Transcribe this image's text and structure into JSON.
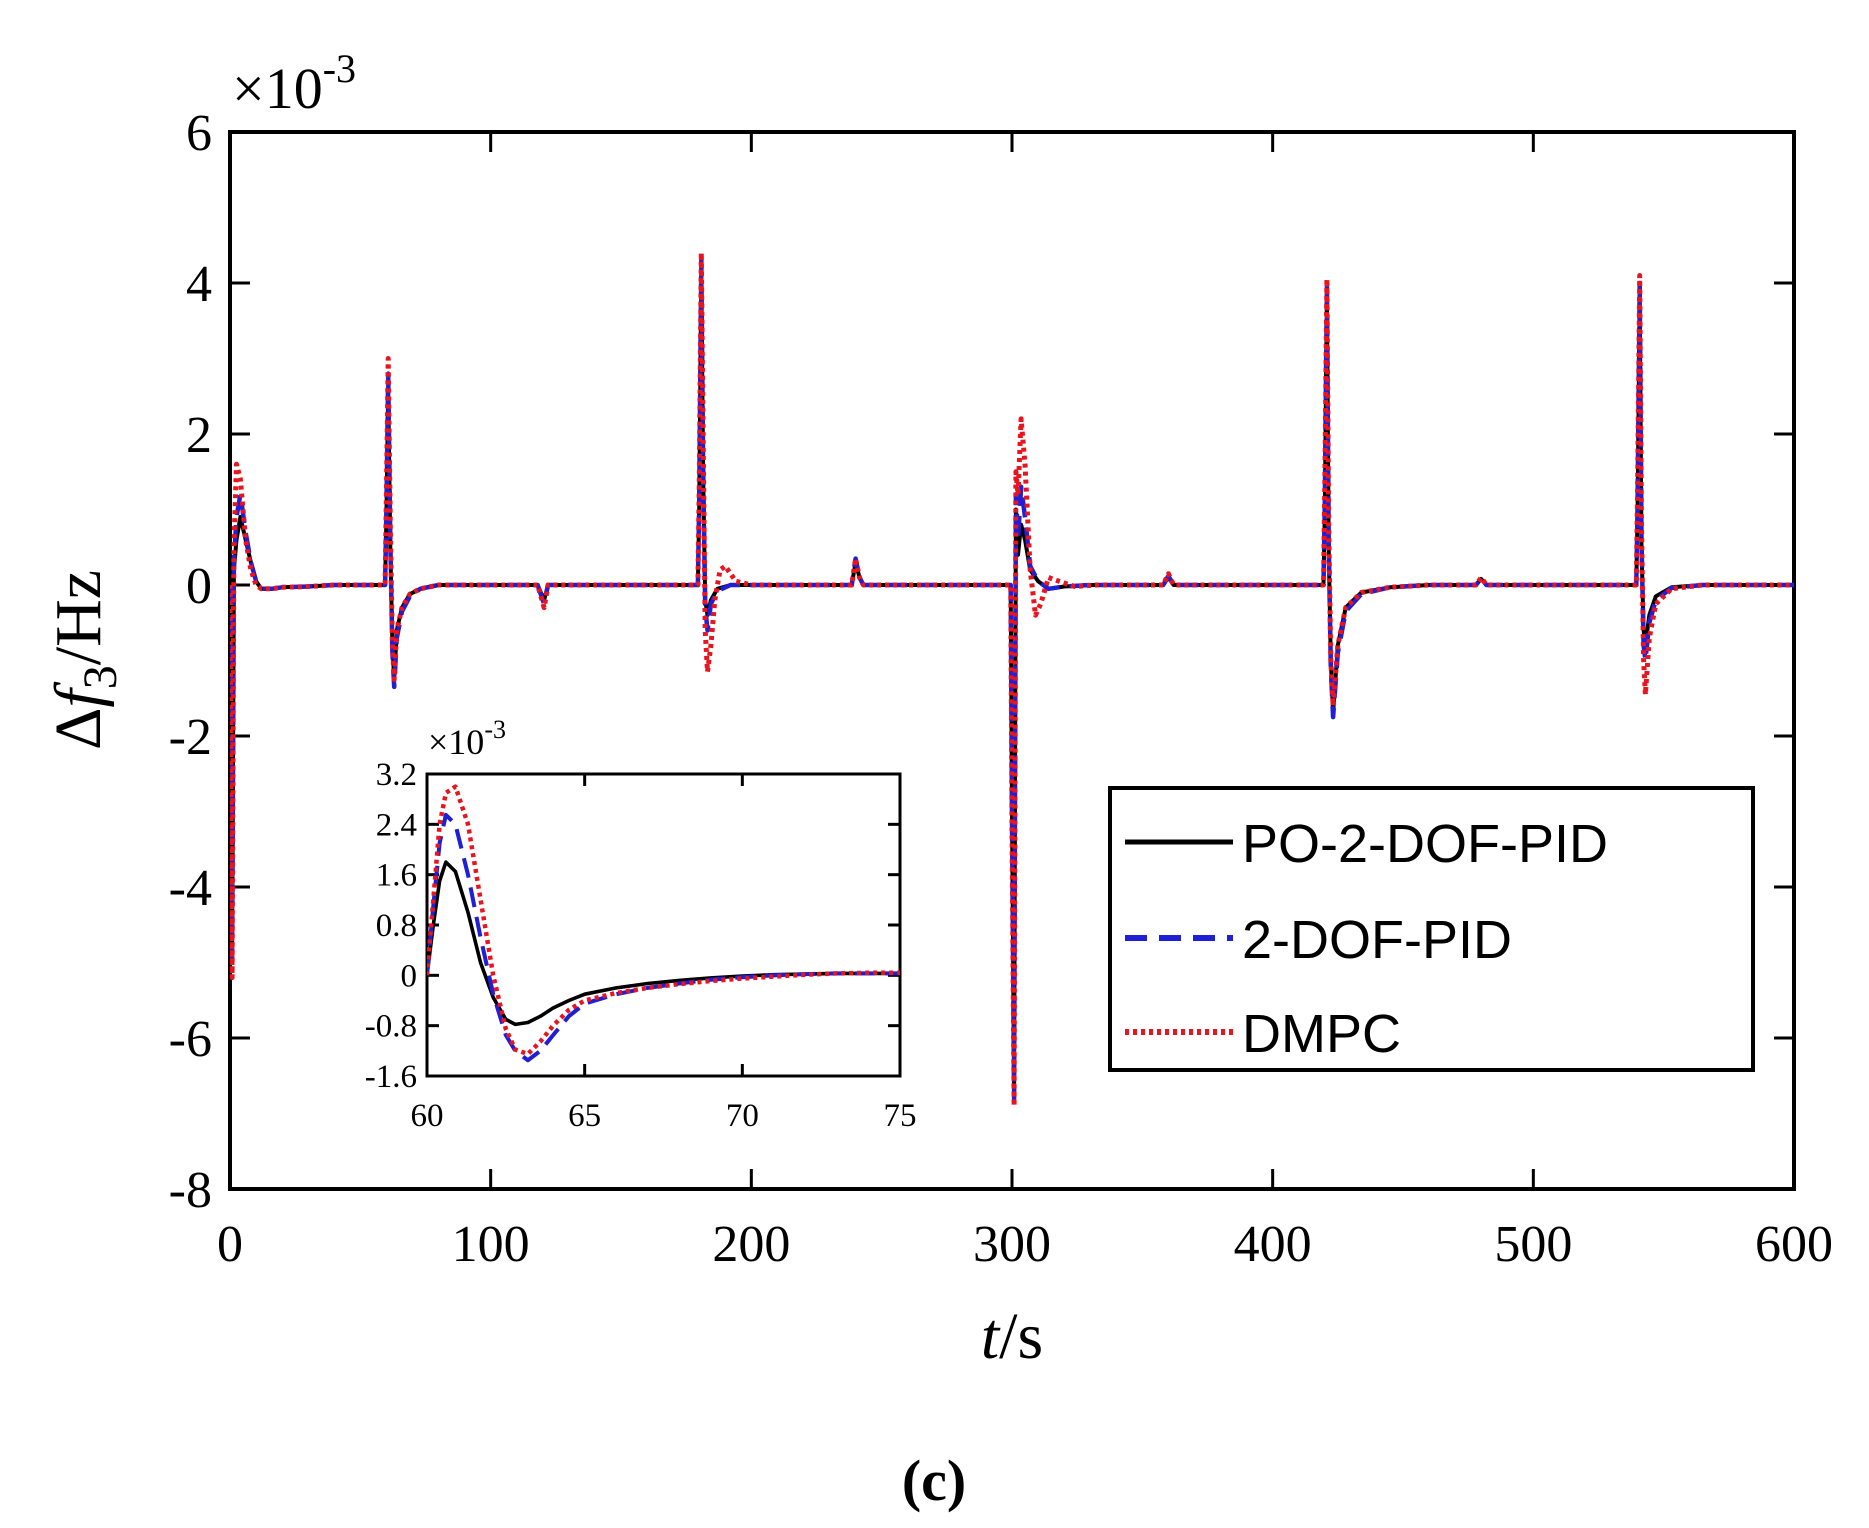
{
  "chart_data": {
    "type": "line",
    "title": "",
    "caption": "(c)",
    "xlabel_var": "t",
    "xlabel_unit": "/s",
    "ylabel_prefix": "Δ",
    "ylabel_var": "f",
    "ylabel_sub": "3",
    "ylabel_unit": "/Hz",
    "exponent_base": "×10",
    "exponent_power": "-3",
    "xlim": [
      0,
      600
    ],
    "ylim": [
      -8,
      6
    ],
    "xticks": [
      "0",
      "100",
      "200",
      "300",
      "400",
      "500",
      "600"
    ],
    "yticks": [
      "6",
      "4",
      "2",
      "0",
      "-2",
      "-4",
      "-6",
      "-8"
    ],
    "legend": {
      "location": "lower-right",
      "entries": [
        "PO-2-DOF-PID",
        "2-DOF-PID",
        "DMPC"
      ]
    },
    "series": [
      {
        "name": "PO-2-DOF-PID",
        "color": "#000000",
        "style": "solid",
        "x": [
          0,
          0.8,
          1.5,
          2.5,
          4,
          6,
          8,
          10,
          12,
          16,
          20,
          30,
          40,
          59.5,
          60,
          60.7,
          61.5,
          62.3,
          63,
          64,
          66,
          69,
          73,
          80,
          100,
          118,
          120.5,
          122,
          125,
          130,
          179.5,
          180,
          180.8,
          181.5,
          182.3,
          183.2,
          184.5,
          187,
          192,
          200,
          238.5,
          240,
          241.5,
          243,
          250,
          299.5,
          300,
          300.8,
          301.5,
          302.3,
          303.5,
          305,
          307,
          310,
          314,
          320,
          330,
          340,
          358,
          360,
          362,
          365,
          370,
          419.5,
          420,
          420.8,
          421.5,
          422.3,
          423.2,
          425,
          428,
          434,
          445,
          460,
          478,
          480,
          482,
          490,
          539.5,
          540,
          540.8,
          541.5,
          542.3,
          543,
          544.5,
          547,
          553,
          565,
          580,
          600
        ],
        "y": [
          0,
          -5.0,
          0.2,
          0.6,
          0.9,
          0.6,
          0.3,
          0.05,
          -0.05,
          -0.05,
          -0.03,
          -0.02,
          0,
          0,
          0.9,
          2.6,
          0.5,
          -0.8,
          -1.25,
          -0.6,
          -0.3,
          -0.12,
          -0.05,
          0,
          0,
          0,
          -0.2,
          0,
          0,
          0,
          0,
          1.0,
          4.2,
          1.5,
          -0.2,
          -0.4,
          -0.2,
          -0.05,
          0,
          0,
          0,
          0.3,
          0.1,
          0,
          0,
          0,
          -3.0,
          -6.7,
          1.0,
          0.4,
          0.8,
          0.6,
          0.2,
          0.05,
          -0.05,
          -0.02,
          0,
          0,
          0,
          0.1,
          0,
          0,
          0,
          0,
          1.0,
          3.9,
          0.5,
          -1.0,
          -1.7,
          -0.8,
          -0.3,
          -0.1,
          -0.03,
          0,
          0,
          0.08,
          0,
          0,
          0,
          1.0,
          3.9,
          0.5,
          -0.6,
          -0.8,
          -0.4,
          -0.15,
          -0.03,
          0,
          0,
          0
        ]
      },
      {
        "name": "2-DOF-PID",
        "color": "#1f1fd6",
        "style": "dashed",
        "x": [
          0,
          0.8,
          1.5,
          2.5,
          4,
          6,
          8,
          10,
          12,
          16,
          20,
          30,
          40,
          59.5,
          60,
          60.7,
          61.5,
          62.3,
          63,
          64,
          66,
          69,
          73,
          80,
          100,
          118,
          120.5,
          122,
          125,
          130,
          179.5,
          180,
          180.8,
          181.5,
          182.3,
          183.2,
          184.5,
          187,
          192,
          200,
          238.5,
          240,
          241.5,
          243,
          250,
          299.5,
          300,
          300.8,
          301.5,
          302.3,
          303.5,
          305,
          307,
          310,
          314,
          320,
          330,
          340,
          358,
          360,
          362,
          365,
          370,
          419.5,
          420,
          420.8,
          421.5,
          422.3,
          423.2,
          425,
          428,
          434,
          445,
          460,
          478,
          480,
          482,
          490,
          539.5,
          540,
          540.8,
          541.5,
          542.3,
          543,
          544.5,
          547,
          553,
          565,
          580,
          600
        ],
        "y": [
          0,
          -5.1,
          0.3,
          0.9,
          1.2,
          0.7,
          0.3,
          0.05,
          -0.05,
          -0.05,
          -0.03,
          -0.02,
          0,
          0,
          1.0,
          2.8,
          0.6,
          -0.9,
          -1.35,
          -0.7,
          -0.35,
          -0.15,
          -0.05,
          0,
          0,
          0,
          -0.25,
          0,
          0,
          0,
          0,
          1.1,
          4.3,
          1.6,
          -0.3,
          -0.6,
          -0.25,
          -0.08,
          0,
          0,
          0,
          0.35,
          0.1,
          0,
          0,
          0,
          -3.1,
          -6.8,
          1.2,
          0.6,
          1.3,
          0.9,
          0.25,
          0.05,
          -0.05,
          -0.02,
          0,
          0,
          0,
          0.12,
          0,
          0,
          0,
          0,
          1.1,
          4.0,
          0.6,
          -1.1,
          -1.75,
          -0.9,
          -0.35,
          -0.12,
          -0.03,
          0,
          0,
          0.09,
          0,
          0,
          0,
          1.1,
          4.0,
          0.6,
          -0.8,
          -1.0,
          -0.5,
          -0.2,
          -0.04,
          0,
          0,
          0
        ]
      },
      {
        "name": "DMPC",
        "color": "#e8141e",
        "style": "dotted",
        "x": [
          0,
          0.8,
          1.5,
          2.5,
          4,
          6,
          8,
          10,
          12,
          16,
          20,
          30,
          40,
          59.5,
          60,
          60.7,
          61.5,
          62.3,
          63,
          64,
          66,
          69,
          73,
          80,
          100,
          118,
          120.5,
          122,
          125,
          130,
          179.5,
          180,
          180.8,
          181.5,
          182.3,
          183.2,
          184.5,
          186,
          188,
          190,
          194,
          200,
          238.5,
          240,
          241.5,
          243,
          250,
          299.5,
          300,
          300.8,
          301.5,
          302.3,
          303.5,
          305,
          307,
          309,
          311,
          314,
          318,
          324,
          332,
          340,
          358,
          360,
          362,
          365,
          370,
          419.5,
          420,
          420.8,
          421.5,
          422.3,
          423.2,
          425,
          428,
          434,
          445,
          460,
          478,
          480,
          482,
          490,
          539.5,
          540,
          540.8,
          541.5,
          542.3,
          543,
          544.5,
          547,
          553,
          565,
          580,
          600
        ],
        "y": [
          0,
          -5.2,
          0.5,
          1.6,
          1.4,
          0.6,
          0.2,
          0,
          -0.05,
          -0.05,
          -0.03,
          -0.02,
          0,
          0,
          1.2,
          3.0,
          0.8,
          -0.8,
          -1.25,
          -0.6,
          -0.3,
          -0.12,
          -0.05,
          0,
          0,
          0,
          -0.3,
          0,
          0,
          0,
          0,
          1.3,
          4.4,
          2.0,
          -0.6,
          -1.15,
          -0.8,
          -0.2,
          0.2,
          0.25,
          0.05,
          0,
          0,
          0.35,
          0.1,
          0,
          0,
          0,
          -3.2,
          -6.9,
          1.5,
          1.2,
          2.2,
          1.6,
          0.2,
          -0.4,
          -0.25,
          0.1,
          0.05,
          -0.02,
          0,
          0,
          0,
          0.15,
          0,
          0,
          0,
          0,
          1.3,
          4.05,
          0.8,
          -1.0,
          -1.6,
          -0.8,
          -0.3,
          -0.1,
          -0.03,
          0,
          0,
          0.1,
          0,
          0,
          0,
          1.3,
          4.1,
          0.8,
          -1.0,
          -1.45,
          -0.7,
          -0.25,
          -0.05,
          0,
          0,
          0
        ]
      }
    ],
    "inset": {
      "xlim": [
        60,
        75
      ],
      "ylim": [
        -1.6,
        3.2
      ],
      "xticks": [
        "60",
        "65",
        "70",
        "75"
      ],
      "yticks": [
        "3.2",
        "2.4",
        "1.6",
        "0.8",
        "0",
        "-0.8",
        "-1.6"
      ],
      "exponent_base": "×10",
      "exponent_power": "-3",
      "series": [
        {
          "name": "PO-2-DOF-PID",
          "x": [
            60,
            60.2,
            60.4,
            60.6,
            60.9,
            61.3,
            61.7,
            62.1,
            62.5,
            62.8,
            63.2,
            63.6,
            64,
            64.5,
            65,
            66,
            67,
            68,
            69,
            70,
            71,
            72,
            73,
            74,
            75
          ],
          "y": [
            0,
            0.8,
            1.5,
            1.8,
            1.65,
            1.0,
            0.2,
            -0.35,
            -0.7,
            -0.78,
            -0.75,
            -0.65,
            -0.52,
            -0.4,
            -0.3,
            -0.2,
            -0.13,
            -0.08,
            -0.04,
            -0.01,
            0.01,
            0.02,
            0.03,
            0.03,
            0.03
          ]
        },
        {
          "name": "2-DOF-PID",
          "x": [
            60,
            60.2,
            60.4,
            60.6,
            60.9,
            61.3,
            61.7,
            62.1,
            62.5,
            62.8,
            63.2,
            63.6,
            64,
            64.5,
            65,
            66,
            67,
            68,
            69,
            70,
            71,
            72,
            73,
            74,
            75
          ],
          "y": [
            0,
            1.1,
            2.1,
            2.55,
            2.4,
            1.6,
            0.6,
            -0.3,
            -0.95,
            -1.2,
            -1.35,
            -1.2,
            -0.95,
            -0.65,
            -0.45,
            -0.3,
            -0.2,
            -0.13,
            -0.07,
            -0.03,
            0,
            0.02,
            0.03,
            0.03,
            0.03
          ]
        },
        {
          "name": "DMPC",
          "x": [
            60,
            60.2,
            60.4,
            60.6,
            60.9,
            61.3,
            61.7,
            62.1,
            62.5,
            62.8,
            63.2,
            63.6,
            64,
            64.5,
            65,
            66,
            67,
            68,
            69,
            70,
            71,
            72,
            73,
            74,
            75
          ],
          "y": [
            0,
            1.2,
            2.4,
            2.9,
            3.0,
            2.4,
            1.2,
            0.0,
            -0.85,
            -1.18,
            -1.25,
            -1.05,
            -0.8,
            -0.55,
            -0.4,
            -0.28,
            -0.2,
            -0.14,
            -0.09,
            -0.05,
            -0.02,
            0.01,
            0.03,
            0.04,
            0.04
          ]
        }
      ]
    }
  }
}
